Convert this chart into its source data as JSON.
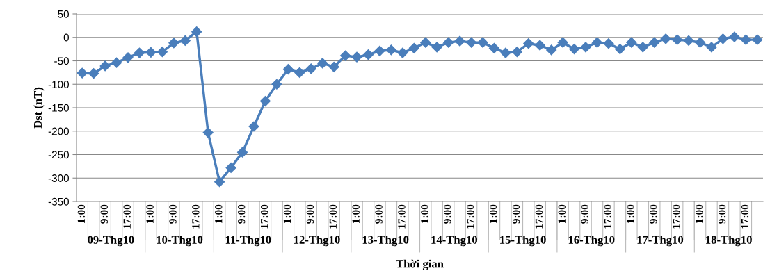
{
  "chart_data": {
    "type": "line",
    "xlabel": "Thời gian",
    "ylabel": "Dst (nT)",
    "categories": [
      "1:00",
      null,
      "9:00",
      null,
      "17:00",
      null,
      "1:00",
      null,
      "9:00",
      null,
      "17:00",
      null,
      "1:00",
      null,
      "9:00",
      null,
      "17:00",
      null,
      "1:00",
      null,
      "9:00",
      null,
      "17:00",
      null,
      "1:00",
      null,
      "9:00",
      null,
      "17:00",
      null,
      "1:00",
      null,
      "9:00",
      null,
      "17:00",
      null,
      "1:00",
      null,
      "9:00",
      null,
      "17:00",
      null,
      "1:00",
      null,
      "9:00",
      null,
      "17:00",
      null,
      "1:00",
      null,
      "9:00",
      null,
      "17:00",
      null,
      "1:00",
      null,
      "9:00",
      null,
      "17:00",
      null
    ],
    "series": [
      {
        "color": "#4a7ebb",
        "values": [
          -76,
          -77,
          -61,
          -54,
          -43,
          -33,
          -32,
          -31,
          -12,
          -7,
          12,
          -203,
          -308,
          -278,
          -245,
          -190,
          -136,
          -100,
          -68,
          -75,
          -67,
          -55,
          -63,
          -39,
          -42,
          -37,
          -29,
          -27,
          -33,
          -23,
          -11,
          -21,
          -11,
          -8,
          -11,
          -11,
          -23,
          -33,
          -31,
          -13,
          -17,
          -27,
          -11,
          -25,
          -21,
          -11,
          -13,
          -25,
          -11,
          -21,
          -11,
          -3,
          -5,
          -7,
          -11,
          -21,
          -3,
          1,
          -5,
          -5
        ]
      }
    ],
    "annotations": [
      "09-Thg10",
      "10-Thg10",
      "11-Thg10",
      "12-Thg10",
      "13-Thg10",
      "14-Thg10",
      "15-Thg10",
      "16-Thg10",
      "17-Thg10",
      "18-Thg10"
    ],
    "ylim": [
      -350,
      50
    ],
    "yticks": [
      50,
      0,
      -50,
      -100,
      -150,
      -200,
      -250,
      -300,
      -350
    ],
    "grid": "y",
    "marker": "diamond",
    "line_style": "solid",
    "legend": false
  }
}
